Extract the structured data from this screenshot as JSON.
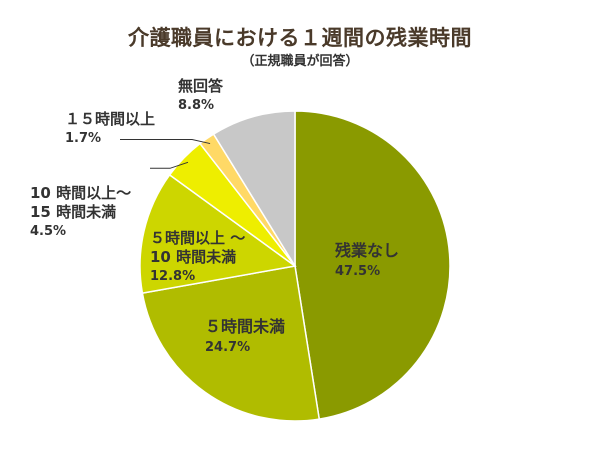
{
  "chart_data": {
    "type": "pie",
    "title": "介護職員における１週間の残業時間",
    "subtitle": "（正規職員が回答）",
    "slices": [
      {
        "label": [
          "残業なし"
        ],
        "value": 47.5,
        "pct": "47.5%",
        "color": "#8a9a00"
      },
      {
        "label": [
          "５時間未満"
        ],
        "value": 24.7,
        "pct": "24.7%",
        "color": "#b0bc00"
      },
      {
        "label": [
          "５時間以上 ～",
          "10 時間未満"
        ],
        "value": 12.8,
        "pct": "12.8%",
        "color": "#cdd600"
      },
      {
        "label": [
          "10 時間以上～",
          "15 時間未満"
        ],
        "value": 4.5,
        "pct": "4.5%",
        "color": "#eeee00"
      },
      {
        "label": [
          "１５時間以上"
        ],
        "value": 1.7,
        "pct": "1.7%",
        "color": "#ffd966"
      },
      {
        "label": [
          "無回答"
        ],
        "value": 8.8,
        "pct": "8.8%",
        "color": "#c8c8c8"
      }
    ]
  }
}
